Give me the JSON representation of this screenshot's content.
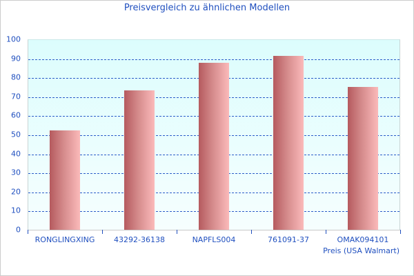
{
  "chart_data": {
    "type": "bar",
    "title": "Preisvergleich zu ähnlichen Modellen",
    "xlabel": "Preis (USA Walmart)",
    "ylabel": "",
    "categories": [
      "RONGLINGXING",
      "43292-36138",
      "NAPFLS004",
      "761091-37",
      "OMAK094101"
    ],
    "series": [
      {
        "name": "Preis (USA Walmart)",
        "values": [
          52.2,
          73.2,
          87.7,
          91.3,
          75.0
        ]
      }
    ],
    "ylim": [
      0,
      100
    ],
    "yticks": [
      0,
      10,
      20,
      30,
      40,
      50,
      60,
      70,
      80,
      90,
      100
    ],
    "grid": true,
    "legend": "none",
    "colors": {
      "bar_dark": "#b55a5e",
      "bar_light": "#fbbaba",
      "grid": "#2a5bc8",
      "text": "#1f4fbf",
      "plot_bg_top": "#dcfdfd",
      "plot_bg_bottom": "#f6fefe"
    }
  }
}
